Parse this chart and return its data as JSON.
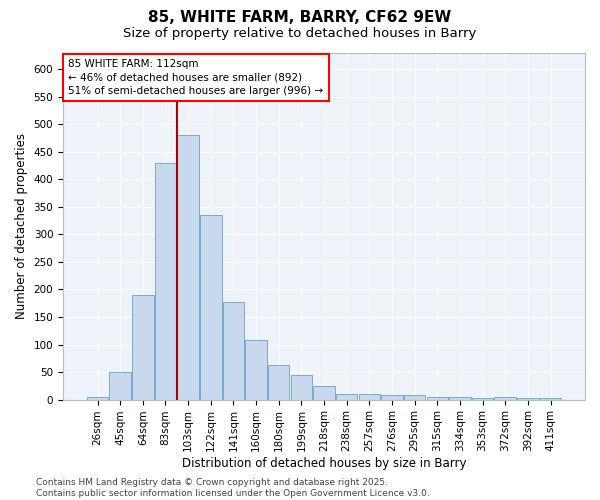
{
  "title1": "85, WHITE FARM, BARRY, CF62 9EW",
  "title2": "Size of property relative to detached houses in Barry",
  "xlabel": "Distribution of detached houses by size in Barry",
  "ylabel": "Number of detached properties",
  "categories": [
    "26sqm",
    "45sqm",
    "64sqm",
    "83sqm",
    "103sqm",
    "122sqm",
    "141sqm",
    "160sqm",
    "180sqm",
    "199sqm",
    "218sqm",
    "238sqm",
    "257sqm",
    "276sqm",
    "295sqm",
    "315sqm",
    "334sqm",
    "353sqm",
    "372sqm",
    "392sqm",
    "411sqm"
  ],
  "values": [
    5,
    50,
    190,
    430,
    480,
    335,
    178,
    108,
    62,
    44,
    24,
    11,
    11,
    8,
    8,
    5,
    4,
    2,
    5,
    3,
    3
  ],
  "bar_color": "#c8d9ee",
  "bar_edge_color": "#7aaad0",
  "ylim": [
    0,
    630
  ],
  "yticks": [
    0,
    50,
    100,
    150,
    200,
    250,
    300,
    350,
    400,
    450,
    500,
    550,
    600
  ],
  "annotation_text": "85 WHITE FARM: 112sqm\n← 46% of detached houses are smaller (892)\n51% of semi-detached houses are larger (996) →",
  "vline_x": 4.0,
  "bg_color": "#eef2f9",
  "footer": "Contains HM Land Registry data © Crown copyright and database right 2025.\nContains public sector information licensed under the Open Government Licence v3.0.",
  "title_fontsize": 11,
  "subtitle_fontsize": 9.5,
  "axis_label_fontsize": 8.5,
  "tick_fontsize": 7.5,
  "footer_fontsize": 6.5,
  "annotation_fontsize": 7.5
}
